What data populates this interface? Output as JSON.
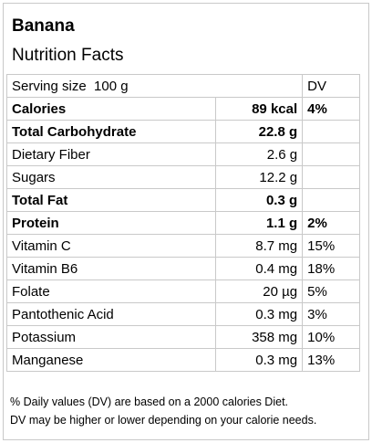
{
  "food": "Banana",
  "heading": "Nutrition Facts",
  "serving": {
    "label": "Serving size",
    "amount": "100 g",
    "dv_header": "DV"
  },
  "rows": [
    {
      "name": "Calories",
      "amount": "89 kcal",
      "dv": "4%",
      "bold": true
    },
    {
      "name": "Total Carbohydrate",
      "amount": "22.8 g",
      "dv": "",
      "bold": true
    },
    {
      "name": "Dietary Fiber",
      "amount": "2.6 g",
      "dv": "",
      "bold": false
    },
    {
      "name": "Sugars",
      "amount": "12.2 g",
      "dv": "",
      "bold": false
    },
    {
      "name": "Total Fat",
      "amount": "0.3 g",
      "dv": "",
      "bold": true
    },
    {
      "name": "Protein",
      "amount": "1.1 g",
      "dv": "2%",
      "bold": true
    },
    {
      "name": "Vitamin C",
      "amount": "8.7 mg",
      "dv": "15%",
      "bold": false
    },
    {
      "name": "Vitamin B6",
      "amount": "0.4 mg",
      "dv": "18%",
      "bold": false
    },
    {
      "name": "Folate",
      "amount": "20 µg",
      "dv": "5%",
      "bold": false
    },
    {
      "name": "Pantothenic Acid",
      "amount": "0.3 mg",
      "dv": "3%",
      "bold": false
    },
    {
      "name": "Potassium",
      "amount": "358 mg",
      "dv": "10%",
      "bold": false
    },
    {
      "name": "Manganese",
      "amount": "0.3 mg",
      "dv": "13%",
      "bold": false
    }
  ],
  "footnote": {
    "line1": "% Daily values (DV) are based on a 2000 calories Diet.",
    "line2": "DV may be higher or lower depending on your calorie needs."
  }
}
